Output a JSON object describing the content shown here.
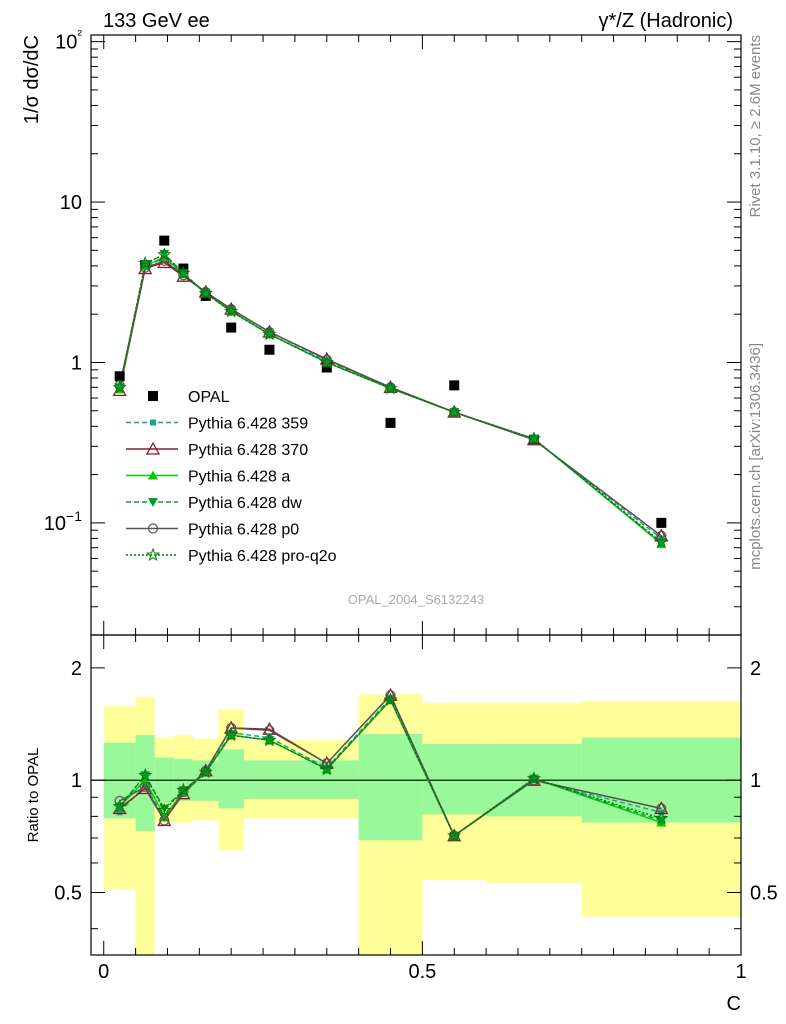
{
  "header": {
    "left": "133 GeV ee",
    "right": "γ*/Z (Hadronic)"
  },
  "side_labels": {
    "rivet": "Rivet 3.1.10, ≥ 2.6M events",
    "mcplots": "mcplots.cern.ch [arXiv:1306.3436]"
  },
  "watermark": "OPAL_2004_S6132243",
  "colors": {
    "data": "#000000",
    "p359": "#17a589",
    "p370": "#8b1a2b",
    "pa": "#00cc00",
    "pdw": "#00a030",
    "pp0": "#555555",
    "ppro": "#007a00",
    "band_yellow": "#ffff99",
    "band_green": "#99f899"
  },
  "chart_data": [
    {
      "type": "scatter",
      "panel": "main",
      "ylabel": "1/σ dσ/dC",
      "yscale": "log",
      "ylim": [
        0.02,
        110
      ],
      "xlim": [
        -0.02,
        1.0
      ],
      "ytick_labels": [
        "10−1",
        "1",
        "10",
        "10²"
      ],
      "x": [
        0.025,
        0.065,
        0.095,
        0.125,
        0.16,
        0.2,
        0.26,
        0.35,
        0.45,
        0.55,
        0.675,
        0.875
      ],
      "series": [
        {
          "name": "OPAL",
          "key": "data",
          "values": [
            0.82,
            4.05,
            5.75,
            3.85,
            2.6,
            1.65,
            1.2,
            0.93,
            0.42,
            0.72,
            0.33,
            0.1
          ]
        },
        {
          "name": "Pythia 6.428 359",
          "key": "p359",
          "values": [
            0.68,
            3.95,
            4.5,
            3.5,
            2.7,
            2.1,
            1.5,
            1.02,
            0.69,
            0.49,
            0.33,
            0.08
          ]
        },
        {
          "name": "Pythia 6.428 370",
          "key": "p370",
          "values": [
            0.67,
            3.85,
            4.2,
            3.45,
            2.75,
            2.15,
            1.55,
            1.05,
            0.7,
            0.49,
            0.33,
            0.083
          ]
        },
        {
          "name": "Pythia 6.428 a",
          "key": "pa",
          "values": [
            0.68,
            4.0,
            4.55,
            3.55,
            2.7,
            2.08,
            1.5,
            1.0,
            0.69,
            0.49,
            0.335,
            0.074
          ]
        },
        {
          "name": "Pythia 6.428 dw",
          "key": "pdw",
          "values": [
            0.7,
            4.1,
            4.75,
            3.6,
            2.7,
            2.08,
            1.5,
            1.0,
            0.69,
            0.49,
            0.335,
            0.075
          ]
        },
        {
          "name": "Pythia 6.428 p0",
          "key": "pp0",
          "values": [
            0.72,
            3.9,
            4.3,
            3.5,
            2.75,
            2.15,
            1.55,
            1.04,
            0.7,
            0.49,
            0.33,
            0.083
          ]
        },
        {
          "name": "Pythia 6.428 pro-q2o",
          "key": "ppro",
          "values": [
            0.7,
            4.15,
            4.7,
            3.6,
            2.7,
            2.08,
            1.5,
            1.0,
            0.69,
            0.49,
            0.335,
            0.076
          ]
        }
      ],
      "legend": "center-left"
    },
    {
      "type": "line",
      "panel": "ratio",
      "ylabel": "Ratio to OPAL",
      "xlabel": "C",
      "yscale": "log",
      "ylim": [
        0.34,
        2.45
      ],
      "xlim": [
        -0.02,
        1.0
      ],
      "ytick_labels": [
        "0.5",
        "1",
        "2"
      ],
      "xtick_labels": [
        "0",
        "0.5",
        "1"
      ],
      "bins": [
        {
          "lo": 0.0,
          "hi": 0.05,
          "y_lo": 0.51,
          "y_hi": 1.58,
          "g_lo": 0.79,
          "g_hi": 1.26
        },
        {
          "lo": 0.05,
          "hi": 0.08,
          "y_lo": 0.34,
          "y_hi": 1.67,
          "g_lo": 0.73,
          "g_hi": 1.32
        },
        {
          "lo": 0.08,
          "hi": 0.11,
          "y_lo": 0.77,
          "y_hi": 1.3,
          "g_lo": 0.87,
          "g_hi": 1.15
        },
        {
          "lo": 0.11,
          "hi": 0.14,
          "y_lo": 0.77,
          "y_hi": 1.32,
          "g_lo": 0.88,
          "g_hi": 1.14
        },
        {
          "lo": 0.14,
          "hi": 0.18,
          "y_lo": 0.78,
          "y_hi": 1.29,
          "g_lo": 0.88,
          "g_hi": 1.13
        },
        {
          "lo": 0.18,
          "hi": 0.22,
          "y_lo": 0.65,
          "y_hi": 1.55,
          "g_lo": 0.84,
          "g_hi": 1.21
        },
        {
          "lo": 0.22,
          "hi": 0.3,
          "y_lo": 0.79,
          "y_hi": 1.28,
          "g_lo": 0.89,
          "g_hi": 1.13
        },
        {
          "lo": 0.3,
          "hi": 0.4,
          "y_lo": 0.79,
          "y_hi": 1.28,
          "g_lo": 0.89,
          "g_hi": 1.13
        },
        {
          "lo": 0.4,
          "hi": 0.5,
          "y_lo": 0.34,
          "y_hi": 1.7,
          "g_lo": 0.69,
          "g_hi": 1.33
        },
        {
          "lo": 0.5,
          "hi": 0.6,
          "y_lo": 0.54,
          "y_hi": 1.61,
          "g_lo": 0.81,
          "g_hi": 1.25
        },
        {
          "lo": 0.6,
          "hi": 0.75,
          "y_lo": 0.53,
          "y_hi": 1.61,
          "g_lo": 0.8,
          "g_hi": 1.25
        },
        {
          "lo": 0.75,
          "hi": 1.0,
          "y_lo": 0.43,
          "y_hi": 1.63,
          "g_lo": 0.77,
          "g_hi": 1.3
        }
      ],
      "x": [
        0.025,
        0.065,
        0.095,
        0.125,
        0.16,
        0.2,
        0.26,
        0.35,
        0.45,
        0.55,
        0.675,
        0.875
      ],
      "series": [
        {
          "name": "Pythia 6.428 359",
          "key": "p359",
          "values": [
            0.82,
            0.97,
            0.79,
            0.92,
            1.05,
            1.34,
            1.3,
            1.08,
            1.66,
            0.71,
            1.0,
            0.82
          ]
        },
        {
          "name": "Pythia 6.428 370",
          "key": "p370",
          "values": [
            0.84,
            0.95,
            0.78,
            0.92,
            1.06,
            1.38,
            1.37,
            1.11,
            1.69,
            0.71,
            1.0,
            0.84
          ]
        },
        {
          "name": "Pythia 6.428 a",
          "key": "pa",
          "values": [
            0.85,
            1.0,
            0.8,
            0.93,
            1.05,
            1.32,
            1.28,
            1.07,
            1.64,
            0.71,
            1.01,
            0.77
          ]
        },
        {
          "name": "Pythia 6.428 dw",
          "key": "pdw",
          "values": [
            0.85,
            1.03,
            0.84,
            0.94,
            1.05,
            1.32,
            1.28,
            1.07,
            1.64,
            0.71,
            1.01,
            0.78
          ]
        },
        {
          "name": "Pythia 6.428 p0",
          "key": "pp0",
          "values": [
            0.88,
            0.96,
            0.78,
            0.93,
            1.06,
            1.38,
            1.36,
            1.11,
            1.69,
            0.71,
            1.0,
            0.84
          ]
        },
        {
          "name": "Pythia 6.428 pro-q2o",
          "key": "ppro",
          "values": [
            0.85,
            1.03,
            0.83,
            0.94,
            1.05,
            1.32,
            1.28,
            1.07,
            1.64,
            0.71,
            1.01,
            0.79
          ]
        }
      ]
    }
  ]
}
